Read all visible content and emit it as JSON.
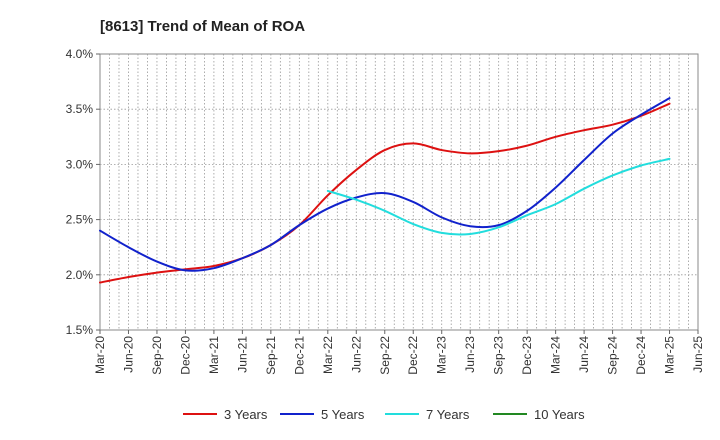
{
  "chart_data": {
    "type": "line",
    "title": "[8613]  Trend of Mean of ROA",
    "xlabel": "",
    "ylabel": "",
    "ylim": [
      1.5,
      4.0
    ],
    "y_ticks": [
      "1.5%",
      "2.0%",
      "2.5%",
      "3.0%",
      "3.5%",
      "4.0%"
    ],
    "y_tick_values": [
      1.5,
      2.0,
      2.5,
      3.0,
      3.5,
      4.0
    ],
    "categories": [
      "Mar-20",
      "Jun-20",
      "Sep-20",
      "Dec-20",
      "Mar-21",
      "Jun-21",
      "Sep-21",
      "Dec-21",
      "Mar-22",
      "Jun-22",
      "Sep-22",
      "Dec-22",
      "Mar-23",
      "Jun-23",
      "Sep-23",
      "Dec-23",
      "Mar-24",
      "Jun-24",
      "Sep-24",
      "Dec-24",
      "Mar-25",
      "Jun-25"
    ],
    "grid": true,
    "legend_position": "bottom",
    "series": [
      {
        "name": "3 Years",
        "color": "#dd1111",
        "values": [
          1.93,
          1.98,
          2.02,
          2.05,
          2.08,
          2.15,
          2.27,
          2.45,
          2.72,
          2.95,
          3.13,
          3.19,
          3.13,
          3.1,
          3.12,
          3.17,
          3.25,
          3.31,
          3.36,
          3.44,
          3.55,
          null
        ]
      },
      {
        "name": "5 Years",
        "color": "#1122cc",
        "values": [
          2.4,
          2.25,
          2.12,
          2.04,
          2.06,
          2.15,
          2.27,
          2.45,
          2.6,
          2.7,
          2.74,
          2.66,
          2.52,
          2.44,
          2.45,
          2.58,
          2.79,
          3.04,
          3.28,
          3.45,
          3.6,
          null
        ]
      },
      {
        "name": "7 Years",
        "color": "#22dddd",
        "values": [
          null,
          null,
          null,
          null,
          null,
          null,
          null,
          null,
          2.76,
          2.68,
          2.58,
          2.46,
          2.38,
          2.37,
          2.43,
          2.54,
          2.64,
          2.78,
          2.9,
          2.99,
          3.05,
          null
        ]
      },
      {
        "name": "10 Years",
        "color": "#228822",
        "values": [
          null,
          null,
          null,
          null,
          null,
          null,
          null,
          null,
          null,
          null,
          null,
          null,
          null,
          null,
          null,
          null,
          null,
          null,
          null,
          null,
          null,
          null
        ]
      }
    ]
  }
}
